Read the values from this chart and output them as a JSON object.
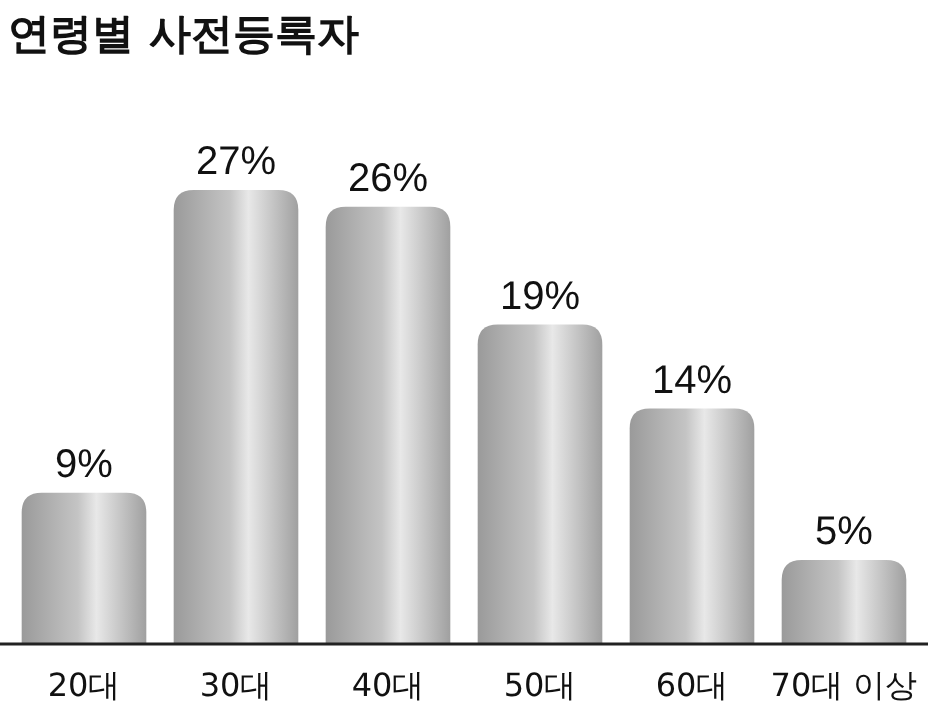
{
  "chart_data": {
    "type": "bar",
    "title": "연령별 사전등록자",
    "categories": [
      "20대",
      "30대",
      "40대",
      "50대",
      "60대",
      "70대 이상"
    ],
    "values": [
      9,
      27,
      26,
      19,
      14,
      5
    ],
    "value_labels": [
      "9%",
      "27%",
      "26%",
      "19%",
      "14%",
      "5%"
    ],
    "color": "#c4c4c4"
  }
}
